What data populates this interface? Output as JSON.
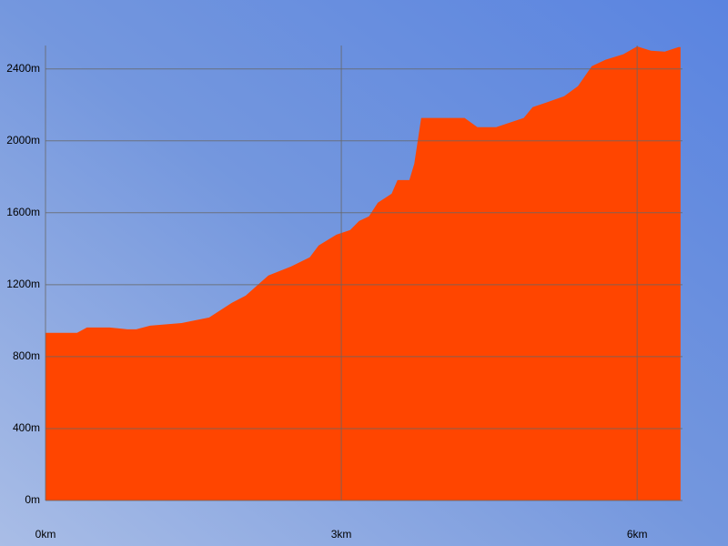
{
  "chart_data": {
    "type": "area",
    "color": "#ff4500",
    "grid": true,
    "x": [
      0,
      0.32,
      0.42,
      0.65,
      0.83,
      0.92,
      1.06,
      1.38,
      1.66,
      1.89,
      2.03,
      2.26,
      2.49,
      2.68,
      2.77,
      2.95,
      3.09,
      3.18,
      3.28,
      3.37,
      3.51,
      3.57,
      3.69,
      3.74,
      3.81,
      4.25,
      4.38,
      4.57,
      4.85,
      4.94,
      5.08,
      5.26,
      5.4,
      5.54,
      5.68,
      5.86,
      6.0,
      6.14,
      6.28,
      6.42,
      6.44
    ],
    "values": [
      932,
      932,
      962,
      962,
      952,
      952,
      972,
      987,
      1018,
      1099,
      1139,
      1251,
      1301,
      1352,
      1418,
      1478,
      1504,
      1554,
      1580,
      1656,
      1706,
      1782,
      1782,
      1873,
      2127,
      2127,
      2076,
      2076,
      2127,
      2187,
      2213,
      2248,
      2304,
      2415,
      2451,
      2481,
      2525,
      2501,
      2496,
      2521,
      2521
    ],
    "xlim": [
      0,
      6.46
    ],
    "ylim": [
      0,
      2530
    ],
    "xticks": [
      {
        "value": 0,
        "label": "0km"
      },
      {
        "value": 3,
        "label": "3km"
      },
      {
        "value": 6,
        "label": "6km"
      }
    ],
    "yticks": [
      {
        "value": 0,
        "label": "0m"
      },
      {
        "value": 400,
        "label": "400m"
      },
      {
        "value": 800,
        "label": "800m"
      },
      {
        "value": 1200,
        "label": "1200m"
      },
      {
        "value": 1600,
        "label": "1600m"
      },
      {
        "value": 2000,
        "label": "2000m"
      },
      {
        "value": 2400,
        "label": "2400m"
      }
    ]
  }
}
